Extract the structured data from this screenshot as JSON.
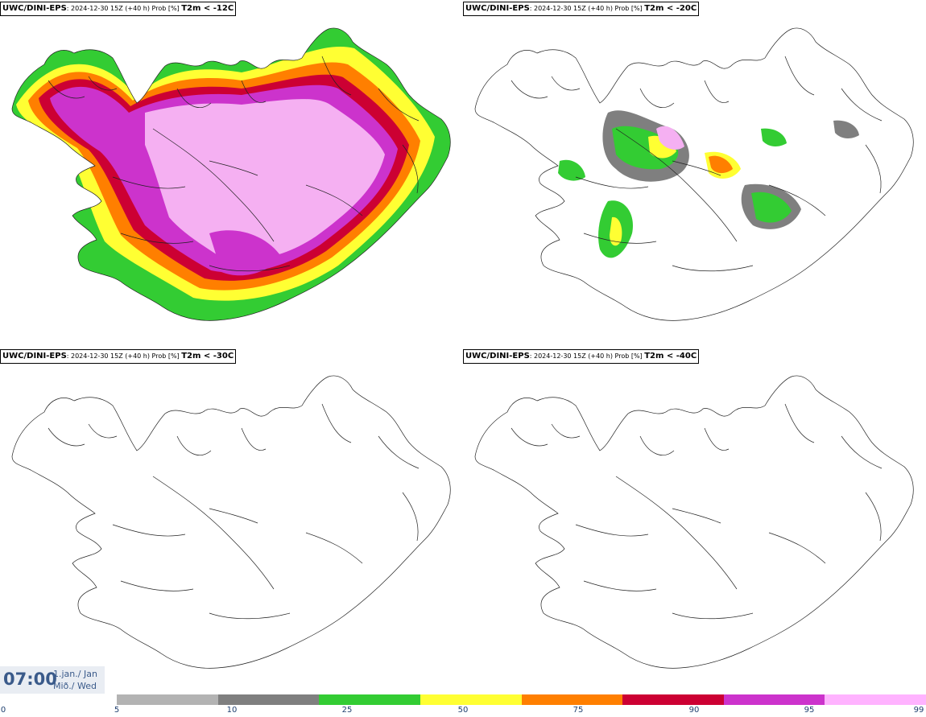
{
  "panels": [
    {
      "model": "UWC/DINI-EPS",
      "meta": ": 2024-12-30 15Z (+40 h) Prob [%] ",
      "var": "T2m < -12C"
    },
    {
      "model": "UWC/DINI-EPS",
      "meta": ": 2024-12-30 15Z (+40 h) Prob [%] ",
      "var": "T2m < -20C"
    },
    {
      "model": "UWC/DINI-EPS",
      "meta": ": 2024-12-30 15Z (+40 h) Prob [%] ",
      "var": "T2m < -30C"
    },
    {
      "model": "UWC/DINI-EPS",
      "meta": ": 2024-12-30 15Z (+40 h) Prob [%] ",
      "var": "T2m < -40C"
    }
  ],
  "time": {
    "hour": "07:00",
    "date_line1": "1.jan./ Jan",
    "date_line2": "Mið./ Wed"
  },
  "legend": {
    "ticks": [
      "0",
      "5",
      "10",
      "25",
      "50",
      "75",
      "90",
      "95",
      "99"
    ],
    "colors": [
      "#b3b3b3",
      "#7f7f7f",
      "#33cc33",
      "#ffff33",
      "#ff7f00",
      "#cc0033",
      "#cc33cc",
      "#ffb3ff"
    ]
  },
  "map_colors": {
    "coast": "#222222",
    "light_pink": "#f5b0f2",
    "magenta": "#cc3fc8",
    "red": "#d8103a",
    "orange": "#ff7f00",
    "yellow": "#ffff33",
    "green": "#33cc33",
    "dgray": "#7f7f7f",
    "lgray": "#b3b3b3"
  }
}
